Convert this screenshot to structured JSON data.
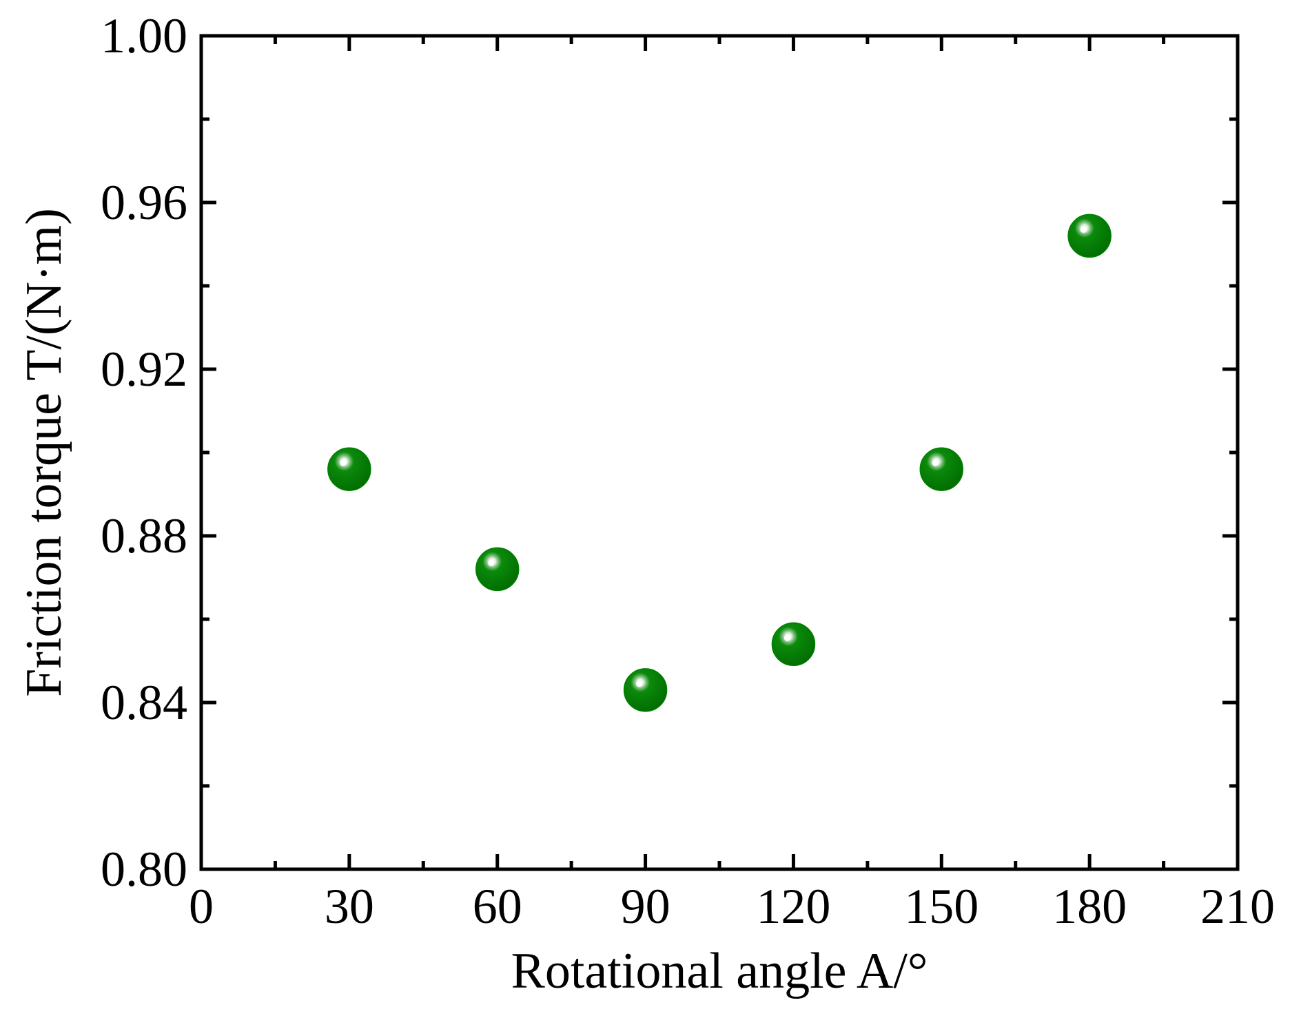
{
  "chart_data": {
    "type": "scatter",
    "xlabel": "Rotational angle A/°",
    "ylabel": "Friction torque T/(N·m)",
    "xlim": [
      0,
      210
    ],
    "ylim": [
      0.8,
      1.0
    ],
    "x_ticks": [
      0,
      30,
      60,
      90,
      120,
      150,
      180,
      210
    ],
    "x_tick_labels": [
      "0",
      "30",
      "60",
      "90",
      "120",
      "150",
      "180",
      "210"
    ],
    "y_ticks": [
      0.8,
      0.84,
      0.88,
      0.92,
      0.96,
      1.0
    ],
    "y_tick_labels": [
      "0.80",
      "0.84",
      "0.88",
      "0.92",
      "0.96",
      "1.00"
    ],
    "grid": false,
    "marker_color": "#008000",
    "series": [
      {
        "x": [
          30,
          60,
          90,
          120,
          150,
          180
        ],
        "y": [
          0.896,
          0.872,
          0.843,
          0.854,
          0.896,
          0.952
        ]
      }
    ]
  }
}
